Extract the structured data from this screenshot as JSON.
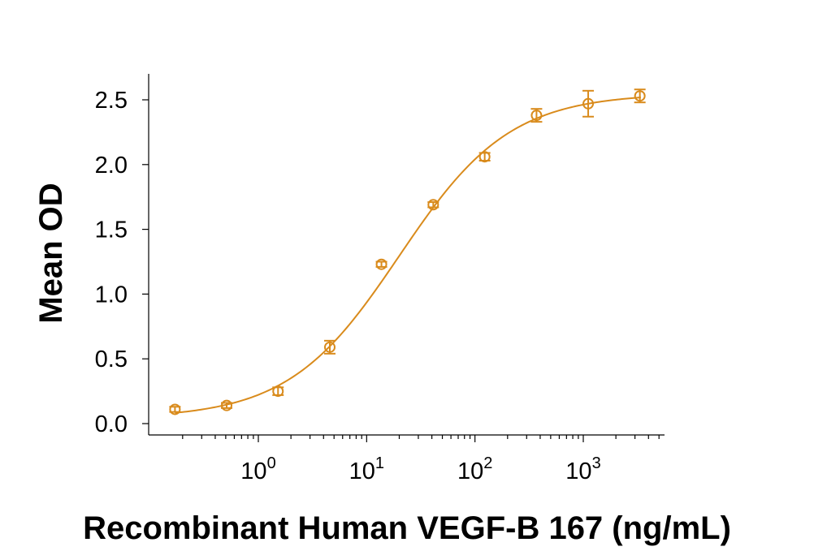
{
  "chart_data": {
    "type": "scatter",
    "title": "",
    "xlabel": "Recombinant Human VEGF-B 167 (ng/mL)",
    "ylabel": "Mean OD",
    "x_scale": "log",
    "xlim": [
      0.12,
      5000
    ],
    "ylim": [
      0,
      2.7
    ],
    "x_ticks": [
      {
        "value": 1,
        "base": "10",
        "exp": "0"
      },
      {
        "value": 10,
        "base": "10",
        "exp": "1"
      },
      {
        "value": 100,
        "base": "10",
        "exp": "2"
      },
      {
        "value": 1000,
        "base": "10",
        "exp": "3"
      }
    ],
    "y_ticks": [
      {
        "value": 0,
        "label": "0.0"
      },
      {
        "value": 0.5,
        "label": "0.5"
      },
      {
        "value": 1,
        "label": "1.0"
      },
      {
        "value": 1.5,
        "label": "1.5"
      },
      {
        "value": 2,
        "label": "2.0"
      },
      {
        "value": 2.5,
        "label": "2.5"
      }
    ],
    "grid": false,
    "legend": "none",
    "color": "#D98B1C",
    "series": [
      {
        "x": [
          0.17,
          0.51,
          1.52,
          4.57,
          13.7,
          41.2,
          123,
          370,
          1110,
          3330
        ],
        "y": [
          0.11,
          0.14,
          0.25,
          0.59,
          1.23,
          1.69,
          2.06,
          2.38,
          2.47,
          2.53
        ],
        "error": [
          0.02,
          0.02,
          0.03,
          0.05,
          0.02,
          0.02,
          0.03,
          0.05,
          0.1,
          0.05
        ]
      }
    ],
    "fit": {
      "model": "4PL",
      "bottom": 0.04,
      "top": 2.55,
      "ec50": 20,
      "hill": 0.85
    }
  }
}
